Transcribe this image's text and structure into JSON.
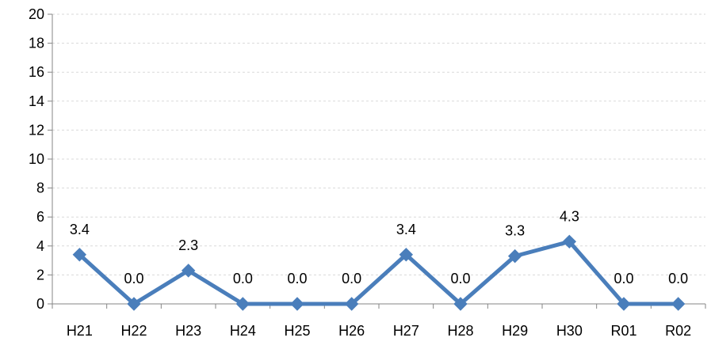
{
  "chart_data": {
    "type": "line",
    "categories": [
      "H21",
      "H22",
      "H23",
      "H24",
      "H25",
      "H26",
      "H27",
      "H28",
      "H29",
      "H30",
      "R01",
      "R02"
    ],
    "series": [
      {
        "values": [
          3.4,
          0.0,
          2.3,
          0.0,
          0.0,
          0.0,
          3.4,
          0.0,
          3.3,
          4.3,
          0.0,
          0.0
        ],
        "labels": [
          "3.4",
          "0.0",
          "2.3",
          "0.0",
          "0.0",
          "0.0",
          "3.4",
          "0.0",
          "3.3",
          "4.3",
          "0.0",
          "0.0"
        ]
      }
    ],
    "ylim": [
      0,
      20
    ],
    "yticks": [
      "0",
      "2",
      "4",
      "6",
      "8",
      "10",
      "12",
      "14",
      "16",
      "18",
      "20"
    ],
    "grid": true,
    "marker": "diamond",
    "line_color": "#4a7ebb",
    "title": "",
    "xlabel": "",
    "ylabel": ""
  }
}
